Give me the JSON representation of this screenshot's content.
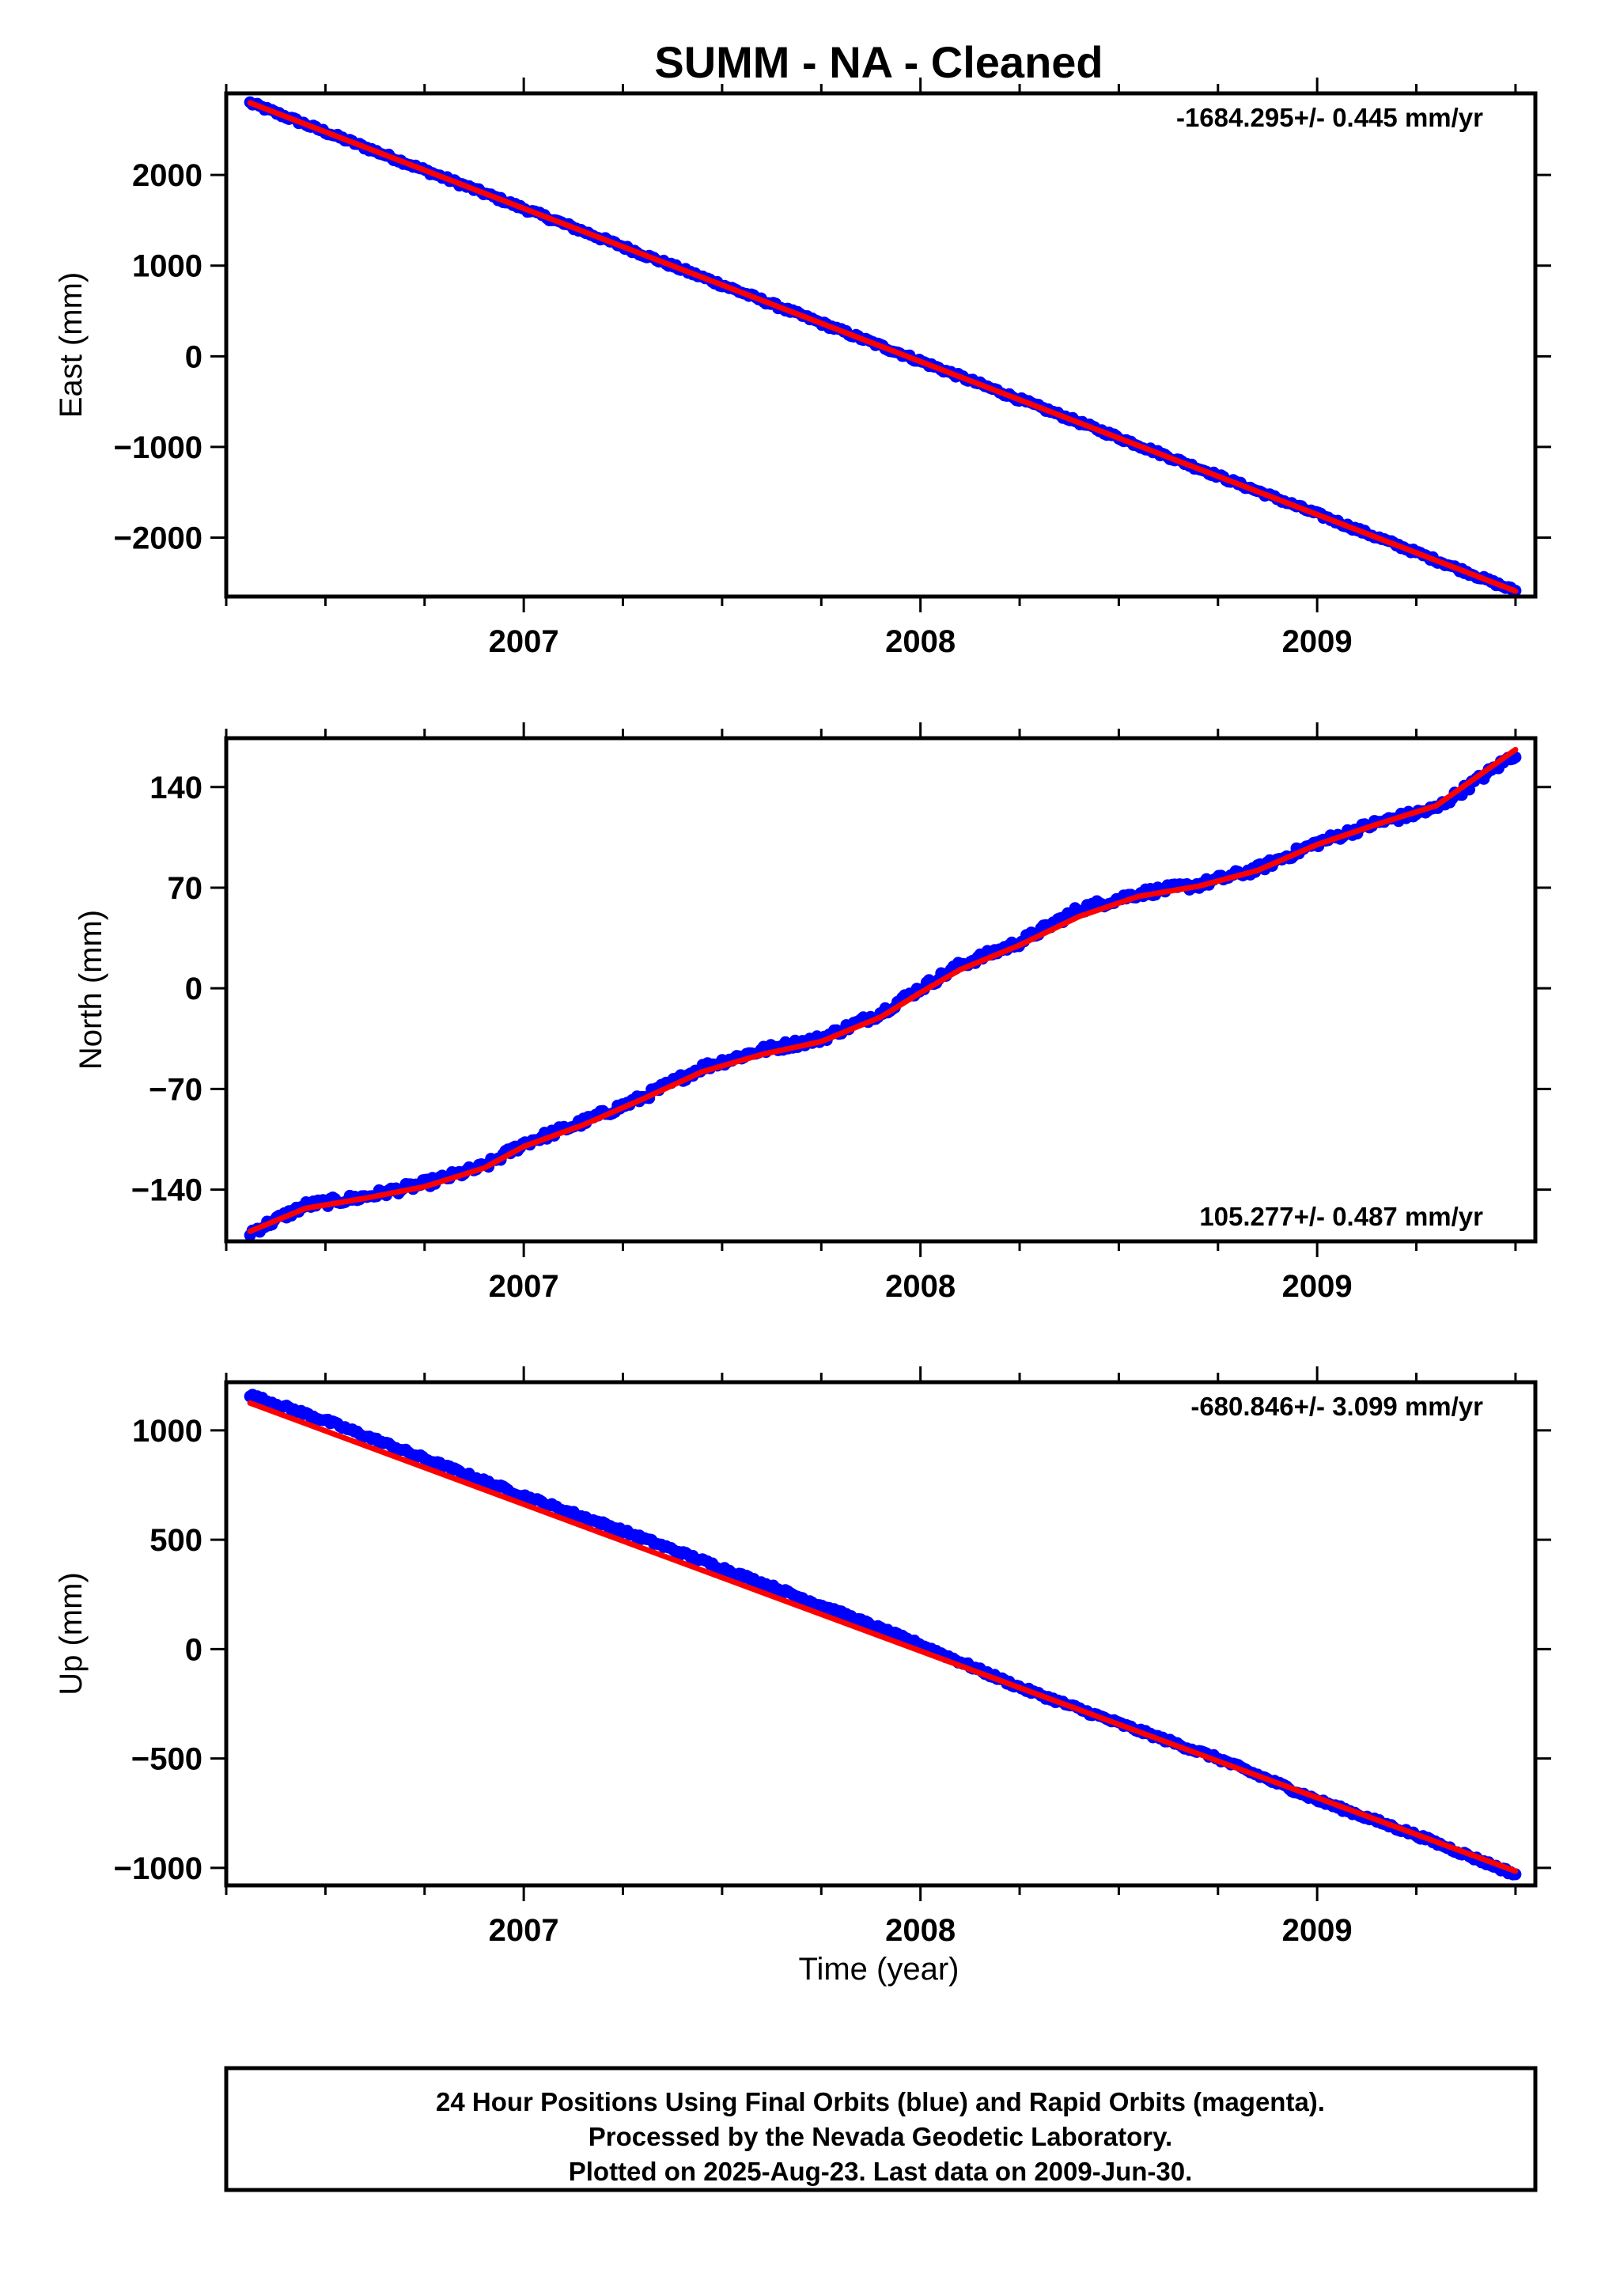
{
  "title": "SUMM  - NA - Cleaned",
  "xlabel": "Time (year)",
  "footer": {
    "lines": [
      "24 Hour Positions Using Final Orbits (blue) and Rapid Orbits (magenta).",
      "Processed by the Nevada Geodetic Laboratory.",
      "Plotted on 2025-Aug-23. Last data on 2009-Jun-30."
    ]
  },
  "colors": {
    "data": "#0000ff",
    "fit": "#ff0000",
    "axis": "#000000"
  },
  "chart_data": [
    {
      "type": "scatter",
      "name": "east",
      "ylabel": "East (mm)",
      "rate": "-1684.295+/- 0.445 mm/yr",
      "rate_position": "top-right",
      "xlim": [
        2006.25,
        2009.55
      ],
      "ylim": [
        -2650,
        2900
      ],
      "xticks": [
        2007,
        2008,
        2009
      ],
      "xtick_labels": [
        "2007",
        "2008",
        "2009"
      ],
      "yticks": [
        2000,
        1000,
        0,
        -1000,
        -2000
      ],
      "ytick_labels": [
        "2000",
        "1000",
        "0",
        "−1000",
        "−2000"
      ],
      "grid": false,
      "data_points": {
        "x": [
          2006.31,
          2007.0,
          2008.0,
          2009.0,
          2009.5
        ],
        "y": [
          2795,
          1630,
          -55,
          -1740,
          -2590
        ]
      },
      "fit_line": {
        "x": [
          2006.31,
          2009.5
        ],
        "y": [
          2795,
          -2590
        ]
      }
    },
    {
      "type": "scatter",
      "name": "north",
      "ylabel": "North (mm)",
      "rate": "105.277+/- 0.487 mm/yr",
      "rate_position": "bottom-right",
      "xlim": [
        2006.25,
        2009.55
      ],
      "ylim": [
        -176,
        174
      ],
      "xticks": [
        2007,
        2008,
        2009
      ],
      "xtick_labels": [
        "2007",
        "2008",
        "2009"
      ],
      "yticks": [
        140,
        70,
        0,
        -70,
        -140
      ],
      "ytick_labels": [
        "140",
        "70",
        "0",
        "−70",
        "−140"
      ],
      "grid": false,
      "data_points": {
        "x": [
          2006.31,
          2006.45,
          2006.6,
          2006.75,
          2006.9,
          2007.0,
          2007.15,
          2007.3,
          2007.45,
          2007.6,
          2007.75,
          2007.9,
          2008.0,
          2008.1,
          2008.25,
          2008.4,
          2008.55,
          2008.7,
          2008.85,
          2009.0,
          2009.15,
          2009.3,
          2009.5
        ],
        "y": [
          -170,
          -151,
          -145,
          -136,
          -124,
          -108,
          -93,
          -76,
          -55,
          -43,
          -35,
          -17,
          0,
          16,
          32,
          55,
          66,
          72,
          83,
          101,
          115,
          125,
          163
        ]
      },
      "fit_line": {
        "x": [
          2006.31,
          2006.45,
          2006.6,
          2006.75,
          2006.9,
          2007.0,
          2007.15,
          2007.3,
          2007.45,
          2007.6,
          2007.75,
          2007.9,
          2008.0,
          2008.1,
          2008.25,
          2008.4,
          2008.55,
          2008.7,
          2008.85,
          2009.0,
          2009.15,
          2009.3,
          2009.5
        ],
        "y": [
          -169,
          -153,
          -146,
          -138,
          -125,
          -110,
          -95,
          -77,
          -58,
          -46,
          -37,
          -20,
          -3,
          13,
          30,
          50,
          64,
          71,
          82,
          100,
          114,
          127,
          166
        ]
      }
    },
    {
      "type": "scatter",
      "name": "up",
      "ylabel": "Up (mm)",
      "rate": "-680.846+/- 3.099 mm/yr",
      "rate_position": "top-right",
      "xlim": [
        2006.25,
        2009.55
      ],
      "ylim": [
        -1080,
        1220
      ],
      "xticks": [
        2007,
        2008,
        2009
      ],
      "xtick_labels": [
        "2007",
        "2008",
        "2009"
      ],
      "yticks": [
        1000,
        500,
        0,
        -500,
        -1000
      ],
      "ytick_labels": [
        "1000",
        "500",
        "0",
        "−500",
        "−1000"
      ],
      "grid": false,
      "data_points": {
        "x": [
          2006.31,
          2006.5,
          2006.75,
          2007.0,
          2007.25,
          2007.5,
          2007.75,
          2008.0,
          2008.25,
          2008.5,
          2008.75,
          2009.0,
          2009.25,
          2009.5
        ],
        "y": [
          1160,
          1045,
          870,
          700,
          540,
          370,
          200,
          20,
          -175,
          -340,
          -500,
          -690,
          -850,
          -1030
        ]
      },
      "fit_line": {
        "x": [
          2006.31,
          2009.5
        ],
        "y": [
          1125,
          -1015
        ]
      }
    }
  ]
}
